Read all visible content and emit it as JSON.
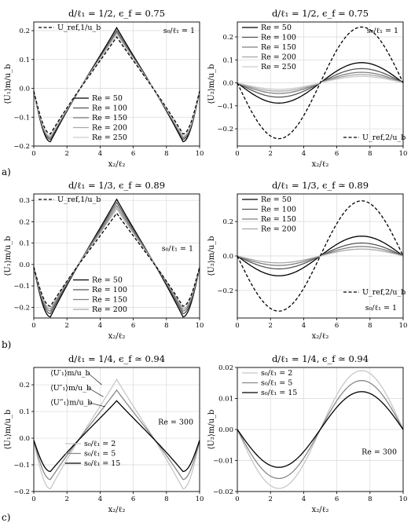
{
  "figure": {
    "row_labels": [
      "a)",
      "b)",
      "c)"
    ]
  },
  "chart_data": [
    {
      "type": "line",
      "title": "d/ℓ₁ = 1/2, ϵ_f = 0.75",
      "xlabel": "x₂/ℓ₂",
      "ylabel": "⟨U₁⟩m/u_b",
      "xlim": [
        0,
        10
      ],
      "ylim": [
        -0.2,
        0.23
      ],
      "xticks": [
        0,
        2,
        4,
        6,
        8,
        10
      ],
      "yticks": [
        -0.2,
        -0.1,
        0.0,
        0.1,
        0.2
      ],
      "yticklabels": [
        "−0.2",
        "−0.1",
        "0.0",
        "0.1",
        "0.2"
      ],
      "grid": true,
      "shape": "vee",
      "series": [
        {
          "name": "Re = 50",
          "color": "#000000",
          "peak": 0.21,
          "trough": -0.185
        },
        {
          "name": "Re = 100",
          "color": "#555555",
          "peak": 0.2,
          "trough": -0.177
        },
        {
          "name": "Re = 150",
          "color": "#7f7f7f",
          "peak": 0.195,
          "trough": -0.172
        },
        {
          "name": "Re = 200",
          "color": "#a8a8a8",
          "peak": 0.19,
          "trough": -0.168
        },
        {
          "name": "Re = 250",
          "color": "#cccccc",
          "peak": 0.187,
          "trough": -0.165
        },
        {
          "name": "U_ref,1/u_b",
          "color": "#000000",
          "dashed": true,
          "peak": 0.178,
          "trough": -0.158
        }
      ],
      "legends": [
        {
          "corner": "tl",
          "items": [
            5
          ]
        },
        {
          "corner": "bl",
          "items": [
            0,
            1,
            2,
            3,
            4
          ]
        }
      ],
      "annotations": [
        {
          "text": "s₀/ℓ₁ = 1",
          "corner": "tr"
        }
      ]
    },
    {
      "type": "line",
      "title": "d/ℓ₁ = 1/2, ϵ_f = 0.75",
      "xlabel": "x₂/ℓ₂",
      "ylabel": "⟨U₂⟩m/u_b",
      "xlim": [
        0,
        10
      ],
      "ylim": [
        -0.275,
        0.265
      ],
      "xticks": [
        0,
        2,
        4,
        6,
        8,
        10
      ],
      "yticks": [
        -0.2,
        -0.1,
        0.0,
        0.1,
        0.2
      ],
      "yticklabels": [
        "−0.2",
        "−0.1",
        "0.0",
        "0.1",
        "0.2"
      ],
      "grid": true,
      "shape": "sine",
      "series": [
        {
          "name": "Re = 50",
          "color": "#000000",
          "amp": 0.088
        },
        {
          "name": "Re = 100",
          "color": "#555555",
          "amp": 0.062
        },
        {
          "name": "Re = 150",
          "color": "#7f7f7f",
          "amp": 0.046
        },
        {
          "name": "Re = 200",
          "color": "#a8a8a8",
          "amp": 0.036
        },
        {
          "name": "Re = 250",
          "color": "#cccccc",
          "amp": 0.028
        },
        {
          "name": "U_ref,2/u_b",
          "color": "#000000",
          "dashed": true,
          "amp": 0.243
        }
      ],
      "legends": [
        {
          "corner": "tl",
          "items": [
            0,
            1,
            2,
            3,
            4
          ]
        },
        {
          "corner": "br",
          "items": [
            5
          ]
        }
      ],
      "annotations": [
        {
          "text": "s₀/ℓ₁ = 1",
          "corner": "tr"
        }
      ]
    },
    {
      "type": "line",
      "title": "d/ℓ₁ = 1/3, ϵ_f ≃ 0.89",
      "xlabel": "x₂/ℓ₂",
      "ylabel": "⟨U₁⟩m/u_b",
      "xlim": [
        0,
        10
      ],
      "ylim": [
        -0.25,
        0.33
      ],
      "xticks": [
        0,
        2,
        4,
        6,
        8,
        10
      ],
      "yticks": [
        -0.2,
        -0.1,
        0.0,
        0.1,
        0.2,
        0.3
      ],
      "yticklabels": [
        "−0.2",
        "−0.1",
        "0.0",
        "0.1",
        "0.2",
        "0.3"
      ],
      "grid": true,
      "shape": "vee",
      "series": [
        {
          "name": "Re = 50",
          "color": "#000000",
          "peak": 0.305,
          "trough": -0.245
        },
        {
          "name": "Re = 100",
          "color": "#555555",
          "peak": 0.29,
          "trough": -0.23
        },
        {
          "name": "Re = 150",
          "color": "#7f7f7f",
          "peak": 0.275,
          "trough": -0.218
        },
        {
          "name": "Re = 200",
          "color": "#a8a8a8",
          "peak": 0.262,
          "trough": -0.208
        },
        {
          "name": "U_ref,1/u_b",
          "color": "#000000",
          "dashed": true,
          "peak": 0.24,
          "trough": -0.195
        }
      ],
      "legends": [
        {
          "corner": "tl",
          "items": [
            4
          ]
        },
        {
          "corner": "bl",
          "items": [
            0,
            1,
            2,
            3
          ]
        }
      ],
      "annotations": [
        {
          "text": "s₀/ℓ₁ = 1",
          "corner": "mr"
        }
      ]
    },
    {
      "type": "line",
      "title": "d/ℓ₁ = 1/3, ϵ_f ≃ 0.89",
      "xlabel": "x₂/ℓ₂",
      "ylabel": "⟨U₂⟩m/u_b",
      "xlim": [
        0,
        10
      ],
      "ylim": [
        -0.36,
        0.36
      ],
      "xticks": [
        0,
        2,
        4,
        6,
        8,
        10
      ],
      "yticks": [
        -0.2,
        0.0,
        0.2
      ],
      "yticklabels": [
        "−0.2",
        "0.0",
        "0.2"
      ],
      "grid": true,
      "shape": "sine",
      "series": [
        {
          "name": "Re = 50",
          "color": "#000000",
          "amp": 0.115
        },
        {
          "name": "Re = 100",
          "color": "#555555",
          "amp": 0.075
        },
        {
          "name": "Re = 150",
          "color": "#7f7f7f",
          "amp": 0.055
        },
        {
          "name": "Re = 200",
          "color": "#a8a8a8",
          "amp": 0.04
        },
        {
          "name": "U_ref,2/u_b",
          "color": "#000000",
          "dashed": true,
          "amp": 0.32
        }
      ],
      "legends": [
        {
          "corner": "tl",
          "items": [
            0,
            1,
            2,
            3
          ]
        },
        {
          "corner": "br",
          "items": [
            4
          ],
          "lift": 22
        }
      ],
      "annotations": [
        {
          "text": "s₀/ℓ₁ = 1",
          "corner": "br"
        }
      ]
    },
    {
      "type": "line",
      "title": "d/ℓ₁ = 1/4, ϵ_f ≃ 0.94",
      "xlabel": "x₂/ℓ₂",
      "ylabel": "⟨U₁⟩m/u_b",
      "xlim": [
        0,
        10
      ],
      "ylim": [
        -0.2,
        0.265
      ],
      "xticks": [
        0,
        2,
        4,
        6,
        8,
        10
      ],
      "yticks": [
        -0.2,
        -0.1,
        0.0,
        0.1,
        0.2
      ],
      "yticklabels": [
        "−0.2",
        "−0.1",
        "0.0",
        "0.1",
        "0.2"
      ],
      "grid": true,
      "shape": "vee",
      "series": [
        {
          "name": "s₀/ℓ₁ = 2",
          "color": "#c8c8c8",
          "peak": 0.22,
          "trough": -0.19
        },
        {
          "name": "s₀/ℓ₁ = 5",
          "color": "#888888",
          "peak": 0.18,
          "trough": -0.155
        },
        {
          "name": "s₀/ℓ₁ = 15",
          "color": "#000000",
          "peak": 0.14,
          "trough": -0.125
        }
      ],
      "legends": [
        {
          "corner": "bl",
          "items": [
            0,
            1,
            2
          ]
        }
      ],
      "annotations": [
        {
          "text": "Re = 300",
          "corner": "mr"
        }
      ],
      "pointer_labels": [
        {
          "text": "⟨U′₁⟩m/u_b",
          "series": 0,
          "tx": 1.0,
          "ty": 0.235,
          "px": 4.1,
          "py": 0.2
        },
        {
          "text": "⟨U″₁⟩m/u_b",
          "series": 1,
          "tx": 1.0,
          "ty": 0.18,
          "px": 4.2,
          "py": 0.155
        },
        {
          "text": "⟨U‴₁⟩m/u_b",
          "series": 2,
          "tx": 1.0,
          "ty": 0.125,
          "px": 4.3,
          "py": 0.118
        }
      ]
    },
    {
      "type": "line",
      "title": "d/ℓ₁ = 1/4, ϵ_f ≃ 0.94",
      "xlabel": "x₂/ℓ₂",
      "ylabel": "⟨U₂⟩m/u_b",
      "xlim": [
        0,
        10
      ],
      "ylim": [
        -0.02,
        0.02
      ],
      "xticks": [
        0,
        2,
        4,
        6,
        8,
        10
      ],
      "yticks": [
        -0.02,
        -0.01,
        0.0,
        0.01,
        0.02
      ],
      "yticklabels": [
        "−0.02",
        "−0.01",
        "0.00",
        "0.01",
        "0.02"
      ],
      "grid": true,
      "shape": "sine",
      "series": [
        {
          "name": "s₀/ℓ₁ = 2",
          "color": "#c8c8c8",
          "amp": 0.019
        },
        {
          "name": "s₀/ℓ₁ = 5",
          "color": "#888888",
          "amp": 0.0158
        },
        {
          "name": "s₀/ℓ₁ = 15",
          "color": "#000000",
          "amp": 0.0122
        }
      ],
      "legends": [
        {
          "corner": "tl",
          "items": [
            0,
            1,
            2
          ]
        }
      ],
      "annotations": [
        {
          "text": "Re = 300",
          "corner": "mr"
        }
      ]
    }
  ]
}
